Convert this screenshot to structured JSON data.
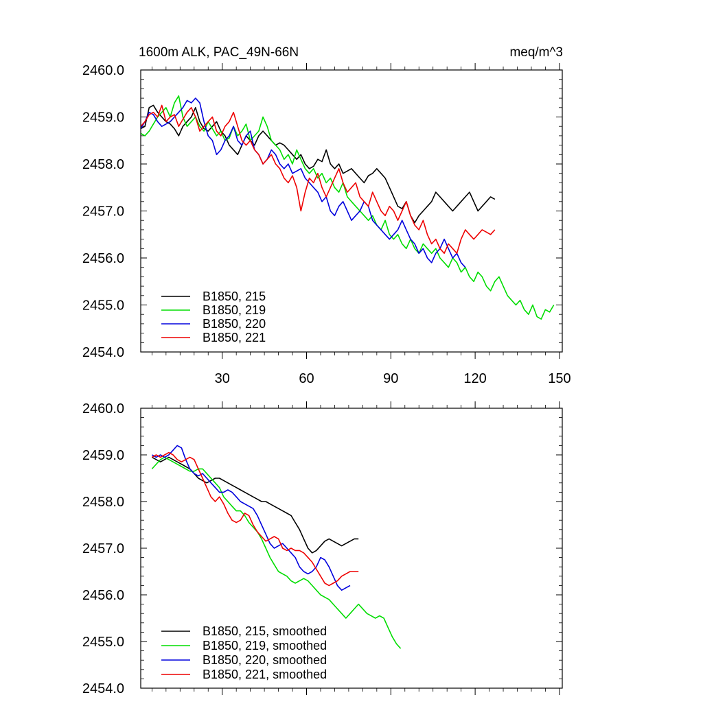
{
  "chart_data": [
    {
      "type": "line",
      "title_left": "1600m ALK, PAC_49N-66N",
      "title_right": "meq/m^3",
      "ylim": [
        2454.0,
        2460.0
      ],
      "xlim": [
        1,
        151
      ],
      "yticks": [
        2454.0,
        2455.0,
        2456.0,
        2457.0,
        2458.0,
        2459.0,
        2460.0
      ],
      "ytick_labels": [
        "2454.0",
        "2455.0",
        "2456.0",
        "2457.0",
        "2458.0",
        "2459.0",
        "2460.0"
      ],
      "xticks": [
        30,
        60,
        90,
        120,
        150
      ],
      "xtick_labels": [
        "30",
        "60",
        "90",
        "120",
        "150"
      ],
      "legend_placement": "bottom-left",
      "series": [
        {
          "name": "B1850, 215",
          "color": "#000000",
          "x_start": 1,
          "values": [
            2458.75,
            2458.8,
            2459.2,
            2459.25,
            2459.1,
            2459.0,
            2458.9,
            2458.85,
            2458.75,
            2458.6,
            2458.8,
            2458.9,
            2459.0,
            2459.2,
            2458.9,
            2458.75,
            2458.7,
            2458.8,
            2458.9,
            2458.7,
            2458.6,
            2458.4,
            2458.3,
            2458.2,
            2458.4,
            2458.6,
            2458.5,
            2458.4,
            2458.6,
            2458.7,
            2458.6,
            2458.5,
            2458.4,
            2458.45,
            2458.4,
            2458.3,
            2458.2,
            2458.1,
            2458.2,
            2458.0,
            2457.9,
            2457.95,
            2458.1,
            2458.05,
            2458.3,
            2458.0,
            2457.9,
            2458.0,
            2457.8,
            2457.85,
            2457.9,
            2457.8,
            2457.7,
            2457.6,
            2457.75,
            2457.8,
            2457.9,
            2457.8,
            2457.7,
            2457.5,
            2457.3,
            2457.1,
            2457.05,
            2457.2,
            2456.9,
            2456.75,
            2456.9,
            2457.0,
            2457.1,
            2457.2,
            2457.4,
            2457.3,
            2457.2,
            2457.1,
            2457.0,
            2457.1,
            2457.2,
            2457.3,
            2457.4,
            2457.2,
            2457.0,
            2457.1,
            2457.2,
            2457.3,
            2457.25
          ]
        },
        {
          "name": "B1850, 219",
          "color": "#00dd00",
          "x_start": 1,
          "values": [
            2458.65,
            2458.6,
            2458.7,
            2458.85,
            2459.0,
            2459.1,
            2459.2,
            2459.0,
            2459.3,
            2459.45,
            2459.0,
            2458.8,
            2458.9,
            2459.0,
            2458.8,
            2458.7,
            2458.9,
            2458.75,
            2458.6,
            2458.7,
            2458.5,
            2458.55,
            2458.8,
            2458.6,
            2458.7,
            2458.85,
            2458.5,
            2458.6,
            2458.7,
            2459.0,
            2458.8,
            2458.5,
            2458.4,
            2458.3,
            2458.1,
            2458.2,
            2458.0,
            2458.3,
            2458.1,
            2457.9,
            2457.8,
            2457.9,
            2457.7,
            2457.8,
            2457.6,
            2457.7,
            2457.5,
            2457.4,
            2457.6,
            2457.3,
            2457.2,
            2457.1,
            2457.0,
            2456.9,
            2456.8,
            2456.9,
            2456.7,
            2456.6,
            2456.8,
            2456.5,
            2456.4,
            2456.5,
            2456.3,
            2456.2,
            2456.4,
            2456.2,
            2456.1,
            2456.3,
            2456.2,
            2456.1,
            2456.2,
            2456.0,
            2455.9,
            2455.8,
            2456.0,
            2455.9,
            2455.7,
            2455.8,
            2455.6,
            2455.5,
            2455.7,
            2455.6,
            2455.4,
            2455.3,
            2455.5,
            2455.6,
            2455.4,
            2455.2,
            2455.1,
            2455.0,
            2455.1,
            2454.9,
            2454.8,
            2455.0,
            2454.75,
            2454.7,
            2454.9,
            2454.85,
            2455.0
          ]
        },
        {
          "name": "B1850, 220",
          "color": "#0000dd",
          "x_start": 1,
          "values": [
            2458.75,
            2458.9,
            2459.1,
            2459.05,
            2458.9,
            2458.8,
            2458.85,
            2458.9,
            2459.0,
            2459.1,
            2459.2,
            2459.35,
            2459.3,
            2459.4,
            2459.3,
            2458.9,
            2458.6,
            2458.5,
            2458.2,
            2458.3,
            2458.5,
            2458.6,
            2458.8,
            2458.5,
            2458.4,
            2458.6,
            2458.7,
            2458.3,
            2458.2,
            2458.0,
            2458.1,
            2458.3,
            2458.2,
            2458.0,
            2457.9,
            2458.0,
            2457.8,
            2457.85,
            2457.9,
            2457.7,
            2457.6,
            2457.5,
            2457.4,
            2457.2,
            2457.3,
            2457.0,
            2456.9,
            2457.1,
            2457.2,
            2457.0,
            2456.8,
            2456.9,
            2457.0,
            2457.2,
            2457.1,
            2456.8,
            2456.7,
            2456.6,
            2456.5,
            2456.4,
            2456.5,
            2456.6,
            2456.8,
            2456.6,
            2456.4,
            2456.3,
            2456.1,
            2456.2,
            2456.0,
            2455.9,
            2456.1,
            2456.2,
            2456.4,
            2456.2,
            2456.0,
            2456.1,
            2455.9,
            2455.8
          ]
        },
        {
          "name": "B1850, 221",
          "color": "#ee0000",
          "x_start": 1,
          "values": [
            2458.8,
            2458.9,
            2459.05,
            2459.1,
            2459.0,
            2459.25,
            2458.9,
            2459.0,
            2459.05,
            2458.8,
            2458.95,
            2459.1,
            2459.2,
            2459.0,
            2458.7,
            2458.8,
            2458.9,
            2459.0,
            2458.7,
            2458.6,
            2458.8,
            2458.9,
            2459.1,
            2458.8,
            2458.5,
            2458.4,
            2458.5,
            2458.3,
            2458.2,
            2458.0,
            2458.1,
            2458.2,
            2458.0,
            2457.9,
            2457.7,
            2457.6,
            2457.75,
            2457.5,
            2457.0,
            2457.4,
            2457.7,
            2457.6,
            2457.8,
            2457.5,
            2457.3,
            2457.5,
            2457.7,
            2457.9,
            2457.6,
            2457.4,
            2457.5,
            2457.6,
            2457.3,
            2457.2,
            2457.1,
            2457.4,
            2457.2,
            2457.0,
            2456.9,
            2457.1,
            2457.0,
            2456.8,
            2457.0,
            2457.2,
            2456.9,
            2456.7,
            2456.6,
            2456.8,
            2456.5,
            2456.3,
            2456.4,
            2456.2,
            2456.1,
            2456.3,
            2456.2,
            2456.1,
            2456.4,
            2456.6,
            2456.5,
            2456.4,
            2456.5,
            2456.6,
            2456.55,
            2456.5,
            2456.6
          ]
        }
      ]
    },
    {
      "type": "line",
      "ylim": [
        2454.0,
        2460.0
      ],
      "xlim": [
        1,
        151
      ],
      "yticks": [
        2454.0,
        2455.0,
        2456.0,
        2457.0,
        2458.0,
        2459.0,
        2460.0
      ],
      "ytick_labels": [
        "2454.0",
        "2455.0",
        "2456.0",
        "2457.0",
        "2458.0",
        "2459.0",
        "2460.0"
      ],
      "xticks": [
        30,
        60,
        90,
        120,
        150
      ],
      "legend_placement": "bottom-left",
      "series": [
        {
          "name": "B1850, 215, smoothed",
          "color": "#000000",
          "x_start": 5,
          "values": [
            2458.95,
            2458.9,
            2458.85,
            2458.9,
            2458.95,
            2458.9,
            2458.85,
            2458.8,
            2458.75,
            2458.7,
            2458.6,
            2458.5,
            2458.45,
            2458.4,
            2458.45,
            2458.5,
            2458.5,
            2458.45,
            2458.4,
            2458.35,
            2458.3,
            2458.25,
            2458.2,
            2458.15,
            2458.1,
            2458.05,
            2458.0,
            2458.0,
            2457.95,
            2457.9,
            2457.85,
            2457.8,
            2457.75,
            2457.7,
            2457.55,
            2457.4,
            2457.2,
            2457.0,
            2456.9,
            2456.95,
            2457.05,
            2457.15,
            2457.2,
            2457.15,
            2457.1,
            2457.05,
            2457.1,
            2457.15,
            2457.2,
            2457.2
          ]
        },
        {
          "name": "B1850, 219, smoothed",
          "color": "#00dd00",
          "x_start": 5,
          "values": [
            2458.7,
            2458.8,
            2458.9,
            2458.95,
            2458.9,
            2458.85,
            2458.8,
            2458.75,
            2458.7,
            2458.65,
            2458.65,
            2458.7,
            2458.7,
            2458.6,
            2458.5,
            2458.4,
            2458.3,
            2458.1,
            2458.0,
            2457.9,
            2457.8,
            2457.8,
            2457.7,
            2457.55,
            2457.45,
            2457.35,
            2457.2,
            2457.0,
            2456.8,
            2456.65,
            2456.5,
            2456.45,
            2456.4,
            2456.3,
            2456.25,
            2456.3,
            2456.35,
            2456.3,
            2456.2,
            2456.1,
            2456.0,
            2455.95,
            2455.9,
            2455.8,
            2455.7,
            2455.6,
            2455.5,
            2455.6,
            2455.7,
            2455.8,
            2455.7,
            2455.6,
            2455.55,
            2455.5,
            2455.55,
            2455.5,
            2455.3,
            2455.1,
            2454.95,
            2454.85
          ]
        },
        {
          "name": "B1850, 220, smoothed",
          "color": "#0000dd",
          "x_start": 5,
          "values": [
            2459.0,
            2458.95,
            2459.0,
            2458.95,
            2459.0,
            2459.1,
            2459.2,
            2459.15,
            2458.9,
            2458.7,
            2458.6,
            2458.55,
            2458.6,
            2458.5,
            2458.4,
            2458.3,
            2458.2,
            2458.2,
            2458.25,
            2458.2,
            2458.1,
            2458.0,
            2457.95,
            2457.9,
            2457.85,
            2457.7,
            2457.5,
            2457.3,
            2457.1,
            2457.0,
            2457.05,
            2457.1,
            2457.0,
            2456.9,
            2456.8,
            2456.6,
            2456.5,
            2456.45,
            2456.5,
            2456.6,
            2456.8,
            2456.75,
            2456.6,
            2456.4,
            2456.2,
            2456.1,
            2456.15,
            2456.2
          ]
        },
        {
          "name": "B1850, 221, smoothed",
          "color": "#ee0000",
          "x_start": 5,
          "values": [
            2458.95,
            2459.0,
            2458.95,
            2459.0,
            2459.05,
            2459.0,
            2458.9,
            2458.85,
            2458.9,
            2458.95,
            2458.9,
            2458.7,
            2458.5,
            2458.3,
            2458.1,
            2458.0,
            2458.1,
            2457.95,
            2457.75,
            2457.6,
            2457.55,
            2457.6,
            2457.75,
            2457.7,
            2457.5,
            2457.35,
            2457.25,
            2457.15,
            2457.2,
            2457.25,
            2457.2,
            2457.0,
            2456.95,
            2457.0,
            2456.95,
            2456.95,
            2456.9,
            2456.8,
            2456.7,
            2456.55,
            2456.4,
            2456.25,
            2456.2,
            2456.25,
            2456.3,
            2456.4,
            2456.45,
            2456.5,
            2456.5,
            2456.5
          ]
        }
      ]
    }
  ]
}
